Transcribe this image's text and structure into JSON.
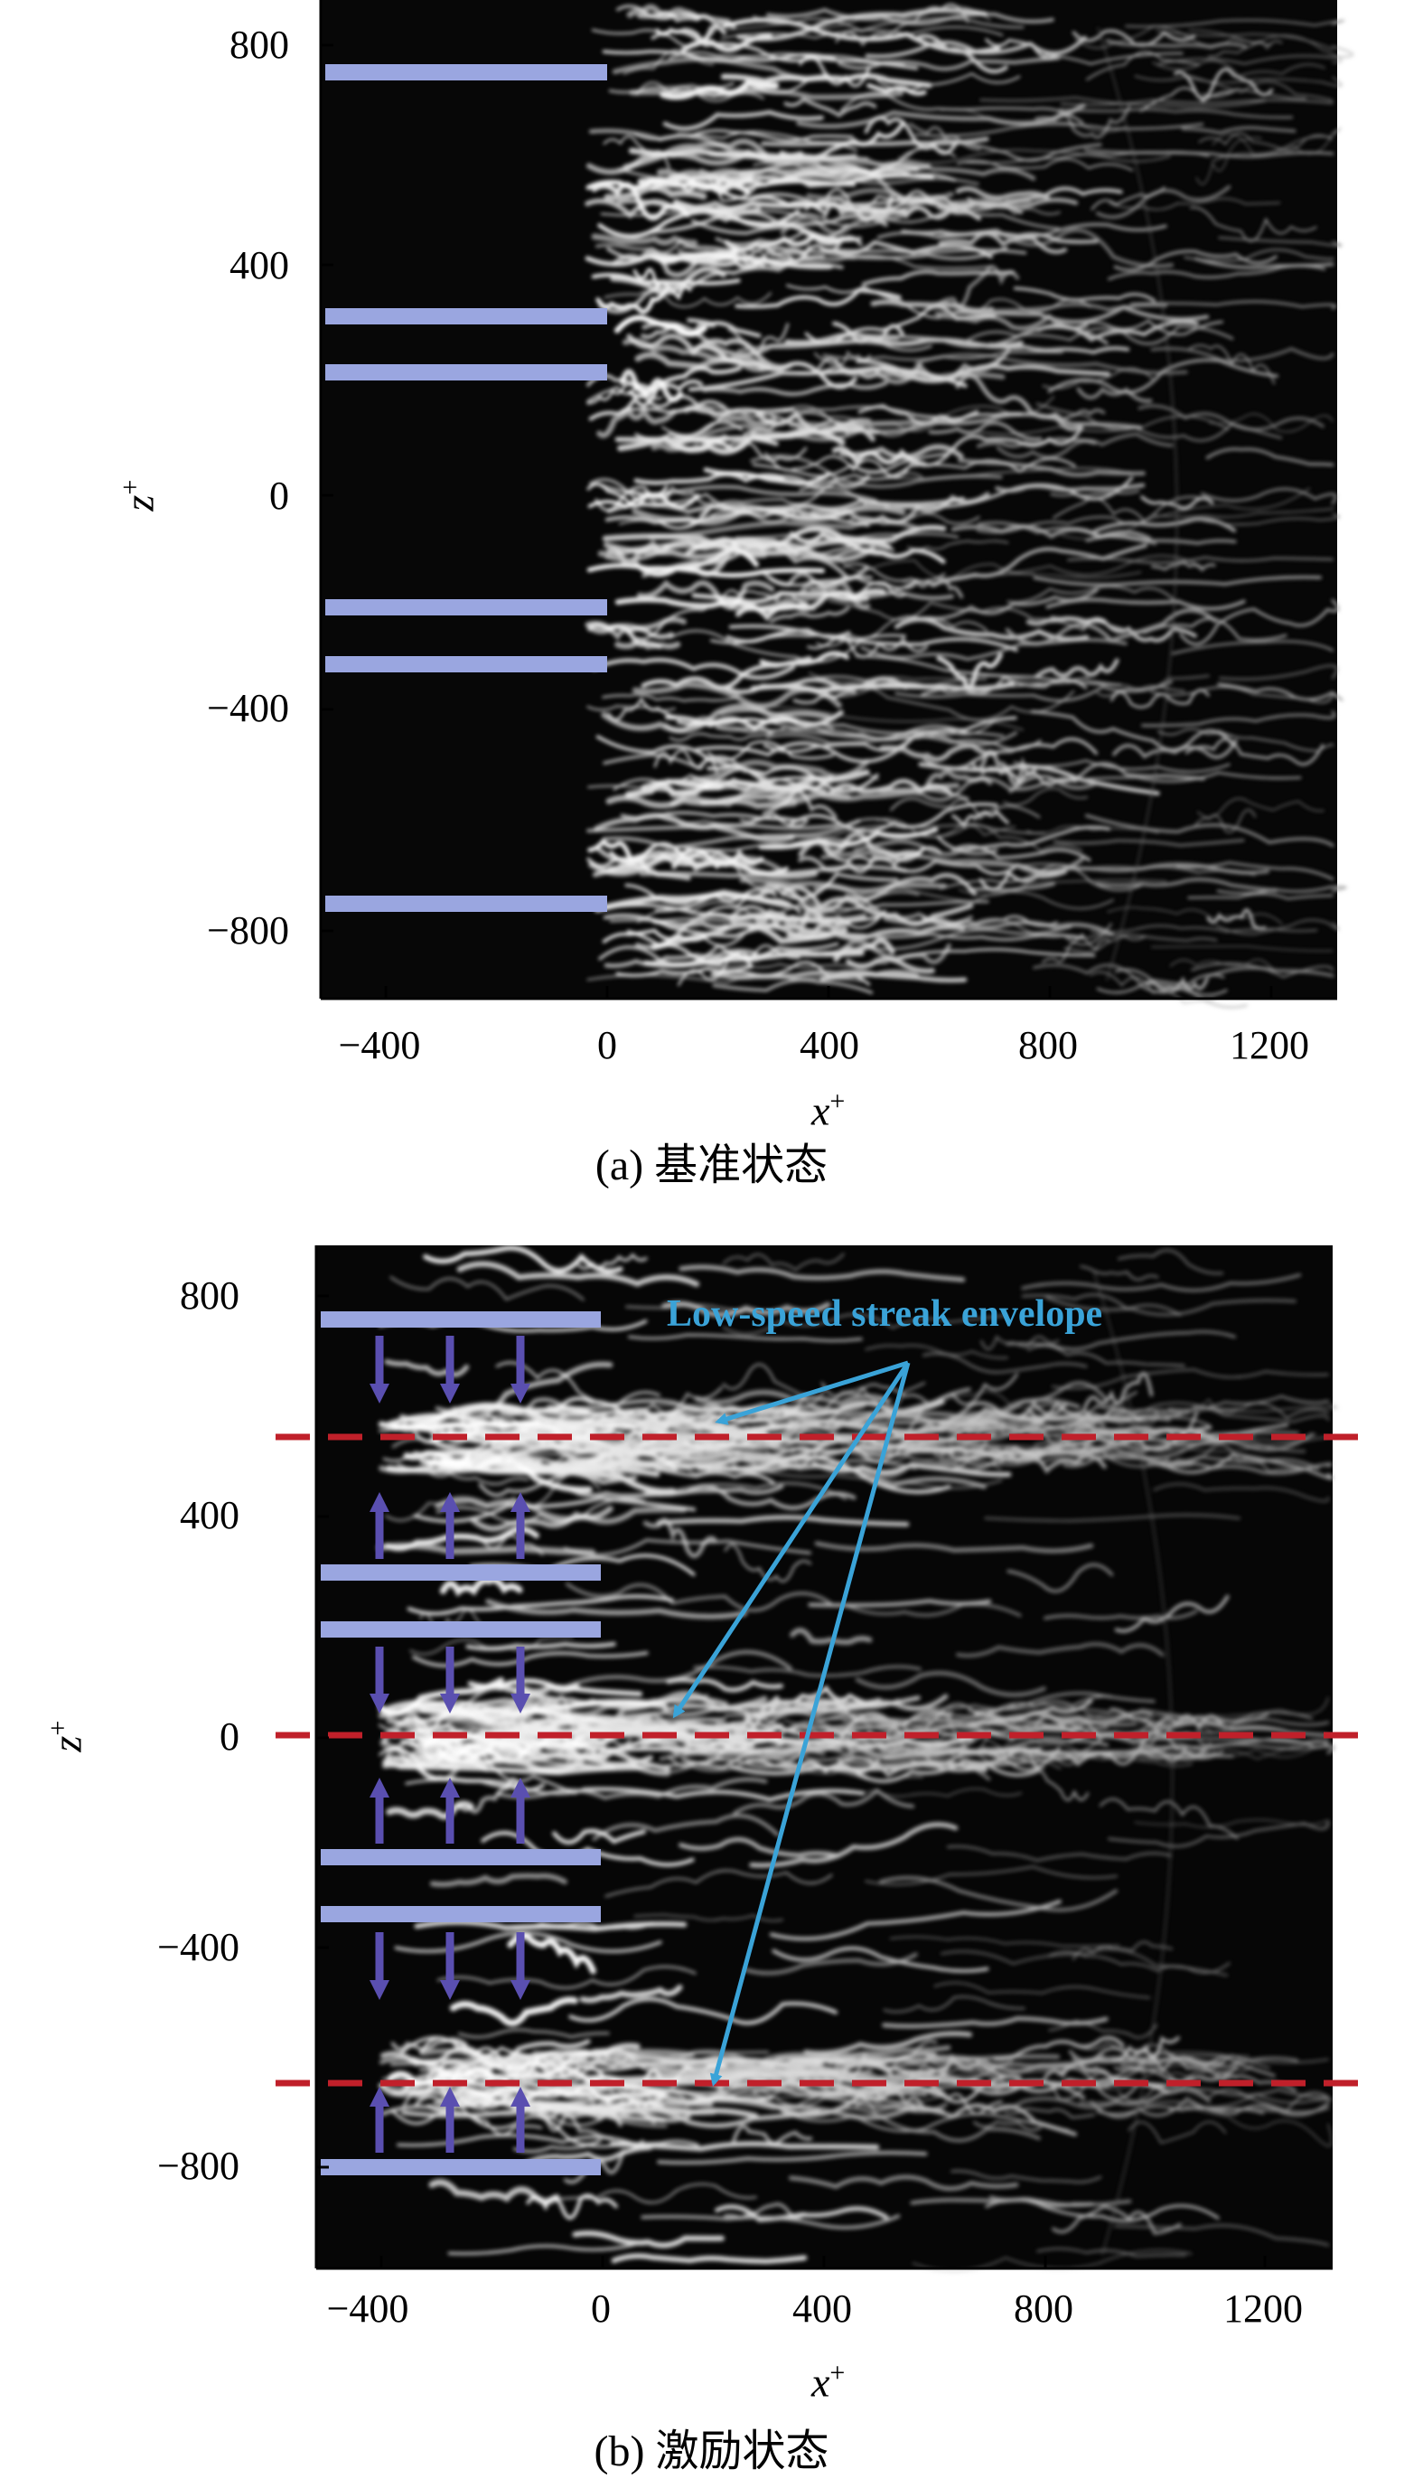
{
  "figure": {
    "panel_a": {
      "caption": "(a) 基准状态",
      "xlabel": "x",
      "xlabel_sup": "+",
      "ylabel": "z",
      "ylabel_sup": "+",
      "xticks": [
        "−400",
        "0",
        "400",
        "800",
        "1200"
      ],
      "yticks": [
        "800",
        "400",
        "0",
        "−400",
        "−800"
      ],
      "actuator_bar_color": "#9aa6e0"
    },
    "panel_b": {
      "caption": "(b) 激励状态",
      "xlabel": "x",
      "xlabel_sup": "+",
      "ylabel": "z",
      "ylabel_sup": "+",
      "xticks": [
        "−400",
        "0",
        "400",
        "800",
        "1200"
      ],
      "yticks": [
        "800",
        "400",
        "0",
        "−400",
        "−800"
      ],
      "annotation": "Low-speed streak envelope",
      "annotation_color": "#3aa3d8",
      "envelope_line_color": "#c0202a",
      "arrow_color": "#5a4fb0",
      "actuator_bar_color": "#9aa6e0"
    }
  }
}
